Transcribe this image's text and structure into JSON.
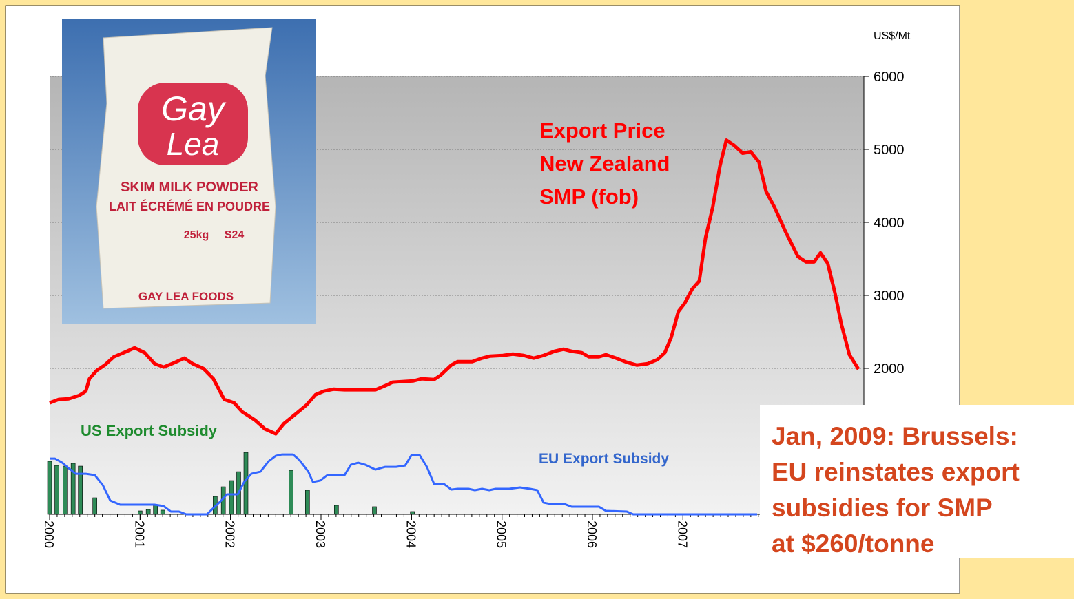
{
  "chart_data": {
    "type": "line",
    "y_axis_label": "US$/Mt",
    "xlim": [
      2000,
      2009
    ],
    "xticks": [
      2000,
      2001,
      2002,
      2003,
      2004,
      2005,
      2006,
      2007
    ],
    "ylim": [
      0,
      6000
    ],
    "yticks": [
      2000,
      3000,
      4000,
      5000,
      6000
    ],
    "grid": true,
    "series": [
      {
        "name_lines": [
          "Export Price",
          "New Zealand",
          "SMP (fob)"
        ],
        "type": "line",
        "color": "#ff0000",
        "x": [
          2000.0,
          2000.1,
          2000.21,
          2000.33,
          2000.4,
          2000.44,
          2000.52,
          2000.61,
          2000.71,
          2000.82,
          2000.94,
          2001.05,
          2001.16,
          2001.26,
          2001.37,
          2001.49,
          2001.58,
          2001.7,
          2001.81,
          2001.93,
          2002.04,
          2002.13,
          2002.27,
          2002.38,
          2002.5,
          2002.59,
          2002.73,
          2002.84,
          2002.94,
          2003.03,
          2003.14,
          2003.26,
          2003.41,
          2003.6,
          2003.71,
          2003.79,
          2003.9,
          2004.02,
          2004.11,
          2004.25,
          2004.32,
          2004.44,
          2004.51,
          2004.67,
          2004.78,
          2004.87,
          2005.01,
          2005.12,
          2005.24,
          2005.35,
          2005.46,
          2005.58,
          2005.68,
          2005.77,
          2005.88,
          2005.96,
          2006.07,
          2006.15,
          2006.26,
          2006.38,
          2006.49,
          2006.61,
          2006.72,
          2006.8,
          2006.87,
          2006.95,
          2007.02,
          2007.1,
          2007.18,
          2007.25,
          2007.33,
          2007.41,
          2007.48,
          2007.56,
          2007.66,
          2007.75,
          2007.84,
          2007.92,
          2008.01,
          2008.13,
          2008.27,
          2008.36,
          2008.45,
          2008.52,
          2008.6,
          2008.68,
          2008.75,
          2008.84,
          2008.94
        ],
        "values": [
          1527,
          1574,
          1583,
          1630,
          1687,
          1857,
          1970,
          2045,
          2158,
          2215,
          2281,
          2215,
          2064,
          2017,
          2073,
          2140,
          2064,
          1998,
          1857,
          1574,
          1527,
          1404,
          1291,
          1169,
          1103,
          1244,
          1385,
          1499,
          1640,
          1687,
          1715,
          1706,
          1706,
          1706,
          1762,
          1810,
          1819,
          1828,
          1857,
          1847,
          1904,
          2045,
          2092,
          2092,
          2140,
          2168,
          2177,
          2196,
          2177,
          2140,
          2177,
          2234,
          2262,
          2234,
          2215,
          2158,
          2158,
          2187,
          2140,
          2083,
          2045,
          2064,
          2121,
          2215,
          2422,
          2780,
          2893,
          3082,
          3195,
          3789,
          4213,
          4778,
          5127,
          5061,
          4948,
          4967,
          4826,
          4420,
          4213,
          3883,
          3534,
          3459,
          3459,
          3582,
          3440,
          3035,
          2611,
          2187,
          1989
        ]
      },
      {
        "name": "EU Export Subsidy",
        "type": "line",
        "color": "#3366ff",
        "x": [
          2000.0,
          2000.06,
          2000.14,
          2000.21,
          2000.29,
          2000.4,
          2000.5,
          2000.59,
          2000.67,
          2000.78,
          2000.9,
          2001.05,
          2001.16,
          2001.26,
          2001.34,
          2001.43,
          2001.51,
          2001.74,
          2001.81,
          2001.89,
          2001.96,
          2002.08,
          2002.15,
          2002.23,
          2002.33,
          2002.42,
          2002.5,
          2002.57,
          2002.69,
          2002.76,
          2002.86,
          2002.91,
          2002.99,
          2003.07,
          2003.26,
          2003.33,
          2003.41,
          2003.49,
          2003.6,
          2003.71,
          2003.83,
          2003.93,
          2004.0,
          2004.09,
          2004.17,
          2004.25,
          2004.36,
          2004.44,
          2004.51,
          2004.63,
          2004.7,
          2004.78,
          2004.86,
          2004.93,
          2005.08,
          2005.2,
          2005.31,
          2005.39,
          2005.46,
          2005.54,
          2005.69,
          2005.77,
          2006.07,
          2006.15,
          2006.38,
          2006.45,
          2007.82
        ],
        "values": [
          763,
          763,
          707,
          631,
          556,
          556,
          537,
          396,
          189,
          132,
          132,
          132,
          132,
          113,
          38,
          38,
          0,
          0,
          85,
          179,
          273,
          273,
          443,
          556,
          584,
          726,
          801,
          820,
          820,
          745,
          584,
          443,
          462,
          537,
          537,
          679,
          707,
          679,
          613,
          650,
          650,
          669,
          811,
          811,
          650,
          415,
          415,
          339,
          349,
          349,
          330,
          349,
          330,
          349,
          349,
          368,
          349,
          330,
          160,
          141,
          141,
          104,
          104,
          47,
          38,
          0,
          0
        ]
      },
      {
        "name": "US Export Subsidy",
        "type": "bar",
        "color": "#2e8b57",
        "x": [
          2000.0,
          2000.08,
          2000.17,
          2000.26,
          2000.34,
          2000.5,
          2001.0,
          2001.09,
          2001.17,
          2001.25,
          2001.83,
          2001.92,
          2002.01,
          2002.09,
          2002.17,
          2002.67,
          2002.85,
          2003.17,
          2003.59,
          2004.01
        ],
        "values": [
          726,
          669,
          660,
          698,
          660,
          226,
          47,
          66,
          132,
          57,
          245,
          377,
          462,
          584,
          848,
          603,
          330,
          123,
          104,
          38
        ]
      }
    ],
    "annotation_lines": [
      "Jan, 2009: Brussels:",
      "EU reinstates export",
      "subsidies for SMP",
      "at $260/tonne"
    ]
  },
  "photo_texts": [
    "Gay",
    "Lea",
    "SKIM MILK POWDER",
    "LAIT ÉCRÉMÉ EN POUDRE",
    "25kg",
    "S24",
    "GAY LEA FOODS"
  ]
}
